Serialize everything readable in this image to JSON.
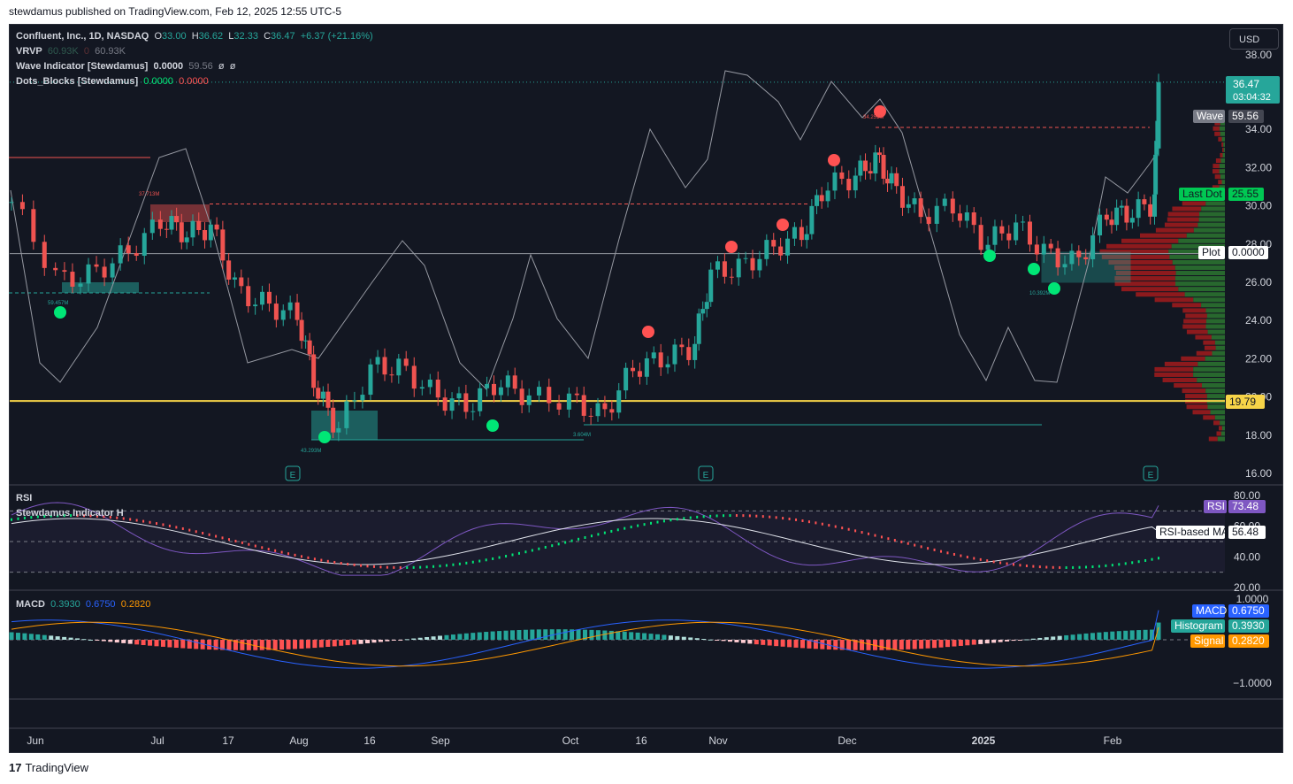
{
  "caption": "stewdamus published on TradingView.com, Feb 12, 2025 12:55 UTC-5",
  "footer": {
    "brand": "TradingView",
    "logo_icon": "tradingview-logo-icon"
  },
  "currency_button": "USD",
  "colors": {
    "up": "#26a69a",
    "down": "#ef5350",
    "background": "#131722",
    "grid": "#2a2e39",
    "text": "#d1d4dc",
    "support_line": "#f7d448",
    "macd_line": "#2962ff",
    "signal_line": "#ff9800",
    "rsi_line": "#7e57c2",
    "dot_green": "#00e676",
    "dot_red": "#ff5252"
  },
  "legend": {
    "symbol": "Confluent, Inc., 1D, NASDAQ",
    "open_label": "O",
    "open": "33.00",
    "high_label": "H",
    "high": "36.62",
    "low_label": "L",
    "low": "32.33",
    "close_label": "C",
    "close": "36.47",
    "change": "+6.37 (+21.16%)",
    "vrvp_label": "VRVP",
    "vrvp_v1": "60.93K",
    "vrvp_v2": "0",
    "vrvp_v3": "60.93K",
    "wave_label": "Wave Indicator [Stewdamus]",
    "wave_v1": "0.0000",
    "wave_v2": "59.56",
    "wave_v3": "ø",
    "wave_v4": "ø",
    "dots_label": "Dots_Blocks [Stewdamus]",
    "dots_v1": "0.0000",
    "dots_v2": "0.0000",
    "rsi_label": "RSI",
    "stew_label": "Stewdamus Indicator H",
    "macd_label": "MACD",
    "macd_v1": "0.3930",
    "macd_v2": "0.6750",
    "macd_v3": "0.2820"
  },
  "badges": {
    "price": "36.47",
    "countdown": "03:04:32",
    "wave_name": "Wave",
    "wave_value": "59.56",
    "lastdot_name": "Last Dot",
    "lastdot_value": "25.55",
    "plot_name": "Plot",
    "plot_value": "0.0000",
    "support_value": "19.79",
    "rsi_name": "RSI",
    "rsi_value": "73.48",
    "rsi_ma_name": "RSI-based MA",
    "rsi_ma_value": "56.48",
    "macd_name": "MACD",
    "macd_value": "0.6750",
    "hist_name": "Histogram",
    "hist_value": "0.3930",
    "signal_name": "Signal",
    "signal_value": "0.2820"
  },
  "annotations": {
    "vol_label_1": "37.713M",
    "vol_label_2": "59.457M",
    "vol_label_3": "43.293M",
    "vol_label_4": "3.604M",
    "vol_label_5": "34.251M",
    "vol_label_6": "10.392M",
    "earnings_icon": "earnings-e-icon"
  },
  "chart_data": [
    {
      "type": "candlestick",
      "title": "Confluent, Inc., 1D, NASDAQ",
      "x_ticks": [
        "Jun",
        "Jul",
        "17",
        "Aug",
        "16",
        "Sep",
        "Oct",
        "16",
        "Nov",
        "Dec",
        "2025",
        "Feb"
      ],
      "y_ticks": [
        16,
        18,
        20,
        22,
        24,
        26,
        28,
        30,
        32,
        34,
        38
      ],
      "ylim": [
        16,
        38
      ],
      "support_level": 19.79,
      "reference_levels": [
        27.5,
        30.1,
        34.1
      ],
      "last_price": 36.47,
      "close_path": [
        {
          "date": "2024-05-24",
          "close": 30.2
        },
        {
          "date": "2024-06-04",
          "close": 26.0
        },
        {
          "date": "2024-06-12",
          "close": 26.5
        },
        {
          "date": "2024-06-20",
          "close": 27.6
        },
        {
          "date": "2024-06-28",
          "close": 29.3
        },
        {
          "date": "2024-07-03",
          "close": 28.5
        },
        {
          "date": "2024-07-09",
          "close": 28.9
        },
        {
          "date": "2024-07-15",
          "close": 25.5
        },
        {
          "date": "2024-07-22",
          "close": 24.8
        },
        {
          "date": "2024-07-29",
          "close": 24.2
        },
        {
          "date": "2024-08-02",
          "close": 20.5
        },
        {
          "date": "2024-08-07",
          "close": 18.3
        },
        {
          "date": "2024-08-15",
          "close": 21.6
        },
        {
          "date": "2024-08-22",
          "close": 21.5
        },
        {
          "date": "2024-08-30",
          "close": 20.0
        },
        {
          "date": "2024-09-06",
          "close": 19.5
        },
        {
          "date": "2024-09-13",
          "close": 20.8
        },
        {
          "date": "2024-09-20",
          "close": 20.0
        },
        {
          "date": "2024-09-30",
          "close": 19.8
        },
        {
          "date": "2024-10-07",
          "close": 19.0
        },
        {
          "date": "2024-10-14",
          "close": 21.5
        },
        {
          "date": "2024-10-21",
          "close": 22.0
        },
        {
          "date": "2024-10-28",
          "close": 22.6
        },
        {
          "date": "2024-11-01",
          "close": 26.5
        },
        {
          "date": "2024-11-08",
          "close": 26.8
        },
        {
          "date": "2024-11-15",
          "close": 27.8
        },
        {
          "date": "2024-11-22",
          "close": 28.5
        },
        {
          "date": "2024-11-27",
          "close": 31.0
        },
        {
          "date": "2024-12-04",
          "close": 31.5
        },
        {
          "date": "2024-12-09",
          "close": 32.5
        },
        {
          "date": "2024-12-13",
          "close": 31.0
        },
        {
          "date": "2024-12-19",
          "close": 29.5
        },
        {
          "date": "2024-12-27",
          "close": 30.0
        },
        {
          "date": "2025-01-03",
          "close": 28.0
        },
        {
          "date": "2025-01-10",
          "close": 29.0
        },
        {
          "date": "2025-01-17",
          "close": 27.5
        },
        {
          "date": "2025-01-24",
          "close": 27.0
        },
        {
          "date": "2025-01-31",
          "close": 29.5
        },
        {
          "date": "2025-02-05",
          "close": 29.6
        },
        {
          "date": "2025-02-11",
          "close": 30.1
        },
        {
          "date": "2025-02-12",
          "close": 36.47
        }
      ]
    },
    {
      "type": "line",
      "title": "RSI",
      "y_ticks": [
        20,
        40,
        60,
        80
      ],
      "ylim": [
        20,
        80
      ],
      "series": [
        {
          "name": "RSI",
          "last": 73.48
        },
        {
          "name": "RSI-based MA",
          "last": 56.48
        }
      ]
    },
    {
      "type": "bar",
      "title": "MACD",
      "y_ticks": [
        1.0,
        -1.0
      ],
      "y_tick_labels": [
        "1.0000",
        "−1.0000"
      ],
      "ylim": [
        -1.3,
        1.1
      ],
      "series": [
        {
          "name": "MACD",
          "last": 0.675
        },
        {
          "name": "Signal",
          "last": 0.282
        },
        {
          "name": "Histogram",
          "last": 0.393
        }
      ]
    }
  ]
}
